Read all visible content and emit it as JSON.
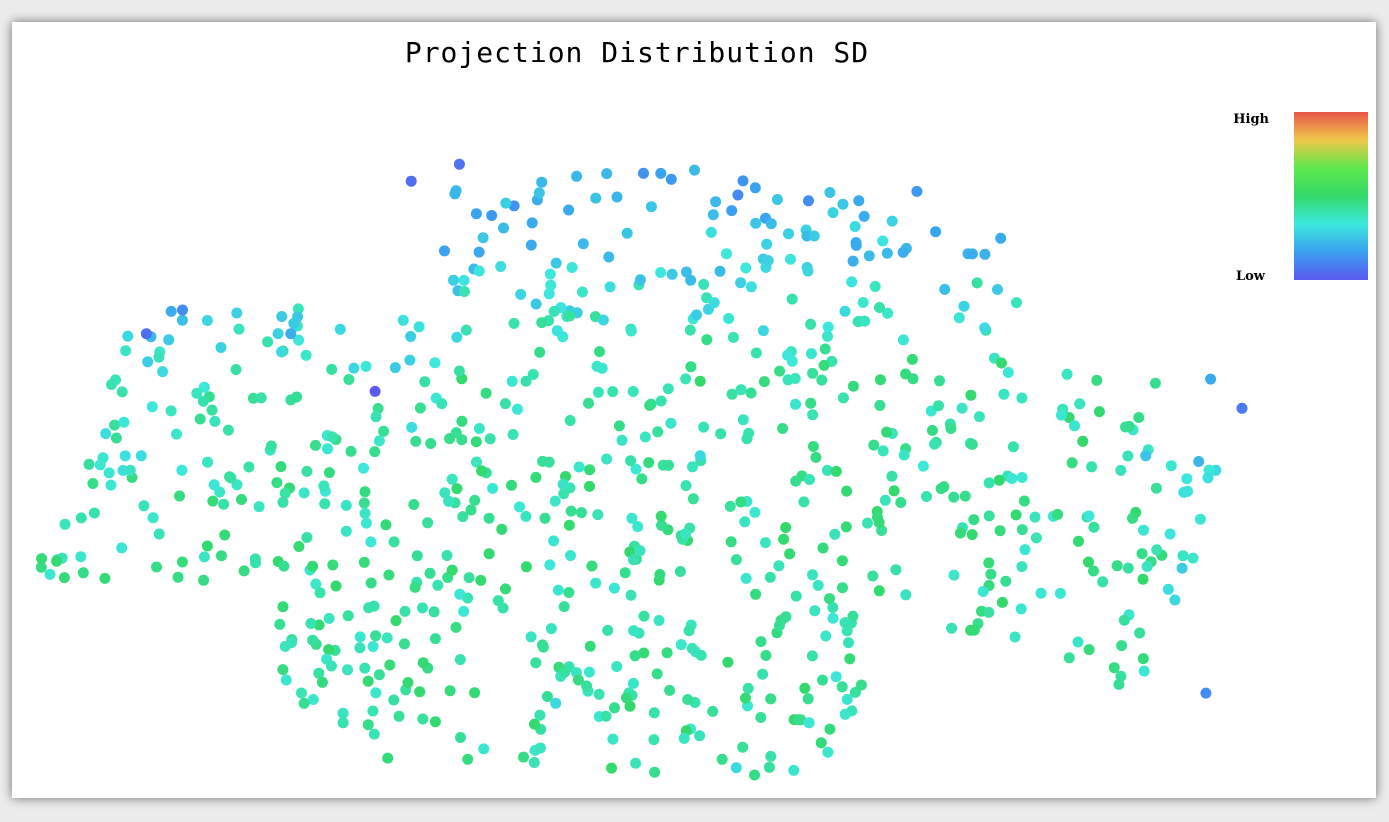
{
  "chart_data": {
    "type": "scatter",
    "title": "Projection Distribution SD",
    "xlabel": "",
    "ylabel": "",
    "legend": {
      "type": "colorbar",
      "placement": "top-right",
      "high_label": "High",
      "low_label": "Low",
      "colormap": [
        "#e8554a",
        "#f0c84a",
        "#5ee84a",
        "#33d96a",
        "#3ce8dc",
        "#3a9ff0",
        "#5a5af0"
      ]
    },
    "axes_visible": false,
    "grid": false,
    "xlim": [
      0,
      1
    ],
    "ylim": [
      0,
      1
    ],
    "value_range": [
      0,
      1
    ],
    "n_points_approx": 820,
    "visible_value_range": [
      0.0,
      0.55
    ],
    "sample_points": [
      {
        "x": 0.01,
        "y": 0.315,
        "v": 0.35
      },
      {
        "x": 0.09,
        "y": 0.67,
        "v": 0.05
      },
      {
        "x": 0.12,
        "y": 0.705,
        "v": 0.12
      },
      {
        "x": 0.21,
        "y": 0.67,
        "v": 0.2
      },
      {
        "x": 0.31,
        "y": 0.895,
        "v": 0.05
      },
      {
        "x": 0.35,
        "y": 0.92,
        "v": 0.06
      },
      {
        "x": 0.28,
        "y": 0.585,
        "v": 0.0
      },
      {
        "x": 0.35,
        "y": 0.615,
        "v": 0.42
      },
      {
        "x": 0.55,
        "y": 0.6,
        "v": 0.5
      },
      {
        "x": 0.55,
        "y": 0.49,
        "v": 0.3
      },
      {
        "x": 0.5,
        "y": 0.35,
        "v": 0.38
      },
      {
        "x": 0.43,
        "y": 0.125,
        "v": 0.3
      },
      {
        "x": 0.58,
        "y": 0.03,
        "v": 0.3
      },
      {
        "x": 0.73,
        "y": 0.88,
        "v": 0.15
      },
      {
        "x": 0.78,
        "y": 0.745,
        "v": 0.42
      },
      {
        "x": 0.79,
        "y": 0.45,
        "v": 0.4
      },
      {
        "x": 0.85,
        "y": 0.55,
        "v": 0.35
      },
      {
        "x": 0.92,
        "y": 0.49,
        "v": 0.25
      },
      {
        "x": 0.9,
        "y": 0.21,
        "v": 0.45
      },
      {
        "x": 0.97,
        "y": 0.14,
        "v": 0.12
      },
      {
        "x": 1.0,
        "y": 0.56,
        "v": 0.08
      }
    ]
  }
}
